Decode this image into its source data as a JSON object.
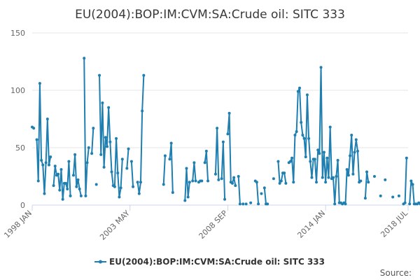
{
  "chart_data": {
    "type": "line",
    "title": "EU(2004):BOP:IM:CVM:SA:Crude oil: SITC 333",
    "xlabel": "",
    "ylabel": "",
    "ylim": [
      0,
      150
    ],
    "yticks": [
      0,
      50,
      100,
      150
    ],
    "xlim": [
      "1998-01",
      "2018-07"
    ],
    "xticks": [
      {
        "label": "1998 JAN",
        "date": "1998-01"
      },
      {
        "label": "2003 MAY",
        "date": "2003-05"
      },
      {
        "label": "2008 SEP",
        "date": "2008-09"
      },
      {
        "label": "2014 JAN",
        "date": "2014-01"
      },
      {
        "label": "2018 JUL",
        "date": "2018-07"
      }
    ],
    "grid": true,
    "legend_position": "bottom",
    "color": "#1f7fb0",
    "series": [
      {
        "name": "EU(2004):BOP:IM:CVM:SA:Crude oil: SITC 333",
        "points": [
          [
            "1998-01",
            68
          ],
          [
            "1998-02",
            67
          ],
          [
            "1998-04",
            57
          ],
          [
            "1998-05",
            21
          ],
          [
            "1998-06",
            106
          ],
          [
            "1998-07",
            39
          ],
          [
            "1998-08",
            35
          ],
          [
            "1998-09",
            10
          ],
          [
            "1998-10",
            37
          ],
          [
            "1998-11",
            75
          ],
          [
            "1998-12",
            35
          ],
          [
            "1999-01",
            42
          ],
          [
            "1999-03",
            17
          ],
          [
            "1999-04",
            34
          ],
          [
            "1999-05",
            26
          ],
          [
            "1999-06",
            27
          ],
          [
            "1999-07",
            13
          ],
          [
            "1999-08",
            31
          ],
          [
            "1999-09",
            5
          ],
          [
            "1999-10",
            19
          ],
          [
            "1999-11",
            19
          ],
          [
            "1999-12",
            14
          ],
          [
            "2000-01",
            38
          ],
          [
            "2000-02",
            8
          ],
          [
            "2000-04",
            26
          ],
          [
            "2000-05",
            44
          ],
          [
            "2000-06",
            16
          ],
          [
            "2000-07",
            22
          ],
          [
            "2000-08",
            14
          ],
          [
            "2000-09",
            8
          ],
          [
            "2000-11",
            128
          ],
          [
            "2000-12",
            8
          ],
          [
            "2001-01",
            37
          ],
          [
            "2001-02",
            50
          ],
          [
            "2001-04",
            45
          ],
          [
            "2001-05",
            67
          ],
          [
            "2001-07",
            18
          ],
          [
            "2001-09",
            113
          ],
          [
            "2001-10",
            44
          ],
          [
            "2001-11",
            89
          ],
          [
            "2001-12",
            33
          ],
          [
            "2002-01",
            59
          ],
          [
            "2002-02",
            51
          ],
          [
            "2002-03",
            85
          ],
          [
            "2002-04",
            55
          ],
          [
            "2002-05",
            29
          ],
          [
            "2002-06",
            17
          ],
          [
            "2002-07",
            16
          ],
          [
            "2002-08",
            58
          ],
          [
            "2002-09",
            28
          ],
          [
            "2002-10",
            7
          ],
          [
            "2002-11",
            15
          ],
          [
            "2002-12",
            40
          ],
          [
            "2003-03",
            32
          ],
          [
            "2003-04",
            49
          ],
          [
            "2003-06",
            38
          ],
          [
            "2003-07",
            16
          ],
          [
            "2003-10",
            20
          ],
          [
            "2003-11",
            10
          ],
          [
            "2003-12",
            20
          ],
          [
            "2004-01",
            82
          ],
          [
            "2004-02",
            113
          ],
          [
            "2005-03",
            18
          ],
          [
            "2005-04",
            43
          ],
          [
            "2005-07",
            40
          ],
          [
            "2005-08",
            54
          ],
          [
            "2005-09",
            11
          ],
          [
            "2006-05",
            4
          ],
          [
            "2006-06",
            32
          ],
          [
            "2006-07",
            7
          ],
          [
            "2006-08",
            20
          ],
          [
            "2006-10",
            21
          ],
          [
            "2006-11",
            37
          ],
          [
            "2006-12",
            21
          ],
          [
            "2007-02",
            20
          ],
          [
            "2007-03",
            21
          ],
          [
            "2007-04",
            21
          ],
          [
            "2007-06",
            37
          ],
          [
            "2007-07",
            47
          ],
          [
            "2007-08",
            21
          ],
          [
            "2008-01",
            27
          ],
          [
            "2008-02",
            67
          ],
          [
            "2008-03",
            22
          ],
          [
            "2008-05",
            23
          ],
          [
            "2008-06",
            55
          ],
          [
            "2008-07",
            5
          ],
          [
            "2008-09",
            62
          ],
          [
            "2008-10",
            80
          ],
          [
            "2008-11",
            20
          ],
          [
            "2008-12",
            19
          ],
          [
            "2009-01",
            24
          ],
          [
            "2009-02",
            17
          ],
          [
            "2009-04",
            25
          ],
          [
            "2009-05",
            1
          ],
          [
            "2009-07",
            1
          ],
          [
            "2009-09",
            1
          ],
          [
            "2009-12",
            2
          ],
          [
            "2010-03",
            21
          ],
          [
            "2010-04",
            20
          ],
          [
            "2010-05",
            1
          ],
          [
            "2010-07",
            10
          ],
          [
            "2010-09",
            15
          ],
          [
            "2010-10",
            1
          ],
          [
            "2010-11",
            1
          ],
          [
            "2011-03",
            23
          ],
          [
            "2011-06",
            38
          ],
          [
            "2011-07",
            19
          ],
          [
            "2011-08",
            21
          ],
          [
            "2011-09",
            28
          ],
          [
            "2011-10",
            28
          ],
          [
            "2011-11",
            19
          ],
          [
            "2012-01",
            37
          ],
          [
            "2012-02",
            38
          ],
          [
            "2012-03",
            41
          ],
          [
            "2012-04",
            20
          ],
          [
            "2012-05",
            61
          ],
          [
            "2012-06",
            64
          ],
          [
            "2012-07",
            99
          ],
          [
            "2012-08",
            102
          ],
          [
            "2012-09",
            72
          ],
          [
            "2012-10",
            61
          ],
          [
            "2012-11",
            58
          ],
          [
            "2012-12",
            42
          ],
          [
            "2013-01",
            96
          ],
          [
            "2013-02",
            58
          ],
          [
            "2013-03",
            38
          ],
          [
            "2013-04",
            24
          ],
          [
            "2013-05",
            40
          ],
          [
            "2013-06",
            40
          ],
          [
            "2013-07",
            20
          ],
          [
            "2013-08",
            48
          ],
          [
            "2013-09",
            45
          ],
          [
            "2013-10",
            120
          ],
          [
            "2013-11",
            24
          ],
          [
            "2013-12",
            46
          ],
          [
            "2014-01",
            20
          ],
          [
            "2014-02",
            41
          ],
          [
            "2014-03",
            24
          ],
          [
            "2014-04",
            68
          ],
          [
            "2014-05",
            23
          ],
          [
            "2014-06",
            24
          ],
          [
            "2014-07",
            1
          ],
          [
            "2014-08",
            25
          ],
          [
            "2014-09",
            39
          ],
          [
            "2014-10",
            2
          ],
          [
            "2014-11",
            2
          ],
          [
            "2014-12",
            1
          ],
          [
            "2015-01",
            2
          ],
          [
            "2015-02",
            1
          ],
          [
            "2015-03",
            31
          ],
          [
            "2015-04",
            26
          ],
          [
            "2015-05",
            43
          ],
          [
            "2015-06",
            61
          ],
          [
            "2015-07",
            27
          ],
          [
            "2015-08",
            46
          ],
          [
            "2015-09",
            57
          ],
          [
            "2015-10",
            47
          ],
          [
            "2015-11",
            20
          ],
          [
            "2015-12",
            21
          ],
          [
            "2016-03",
            6
          ],
          [
            "2016-04",
            29
          ],
          [
            "2016-05",
            20
          ],
          [
            "2016-09",
            25
          ],
          [
            "2017-01",
            8
          ],
          [
            "2017-04",
            22
          ],
          [
            "2017-09",
            7
          ],
          [
            "2018-01",
            8
          ],
          [
            "2018-04",
            1
          ],
          [
            "2018-05",
            2
          ],
          [
            "2018-06",
            41
          ],
          [
            "2018-08",
            1
          ],
          [
            "2018-09",
            21
          ],
          [
            "2018-10",
            18
          ],
          [
            "2018-11",
            1
          ],
          [
            "2018-12",
            1
          ],
          [
            "2019-01",
            1
          ],
          [
            "2019-02",
            2
          ],
          [
            "2019-03",
            1
          ],
          [
            "2019-04",
            1
          ],
          [
            "2019-05",
            1
          ],
          [
            "2019-06",
            1
          ],
          [
            "2019-07",
            1
          ]
        ]
      }
    ]
  },
  "legend": {
    "label": "EU(2004):BOP:IM:CVM:SA:Crude oil: SITC 333"
  },
  "credits": {
    "label": "Source:"
  }
}
